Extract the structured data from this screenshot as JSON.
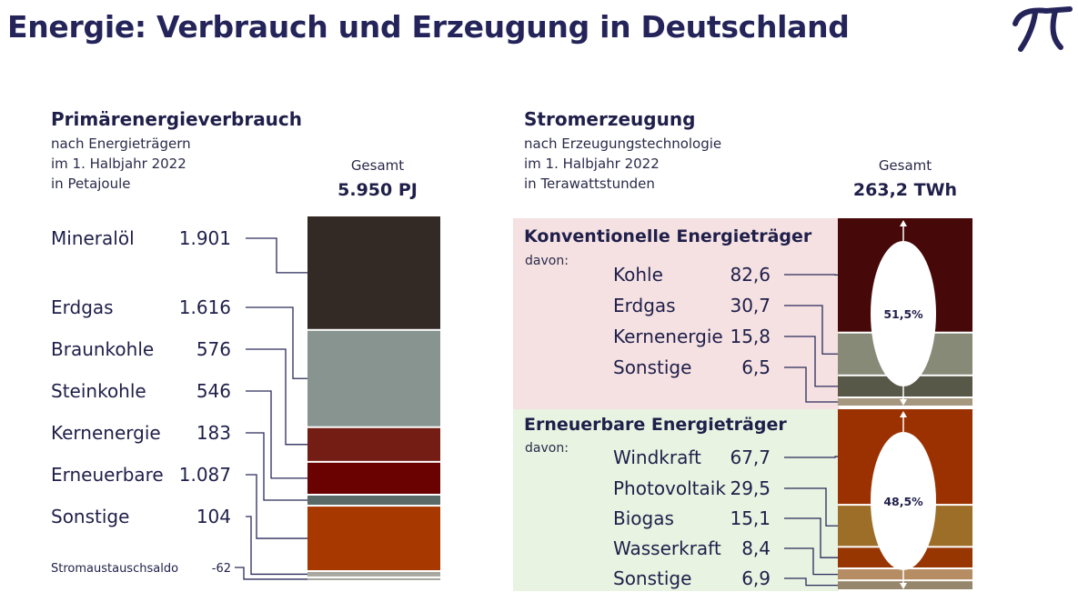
{
  "page": {
    "title": "Energie: Verbrauch und Erzeugung in Deutschland",
    "logo": "pi-logo-icon"
  },
  "left": {
    "title": "Primärenergieverbrauch",
    "subtitle": [
      "nach Energieträgern",
      "im 1. Halbjahr 2022",
      "in Petajoule"
    ],
    "total_label": "Gesamt",
    "total_value": "5.950 PJ"
  },
  "right": {
    "title": "Stromerzeugung",
    "subtitle": [
      "nach Erzeugungstechnologie",
      "im 1. Halbjahr 2022",
      "in Terawattstunden"
    ],
    "total_label": "Gesamt",
    "total_value": "263,2 TWh",
    "groups": [
      {
        "title": "Konventionelle Energieträger",
        "davon": "davon:",
        "share": "51,5%",
        "bg": "#f5e1e2"
      },
      {
        "title": "Erneuerbare Energieträger",
        "davon": "davon:",
        "share": "48,5%",
        "bg": "#e8f3e1"
      }
    ]
  },
  "chart_data": [
    {
      "type": "bar",
      "stacked": true,
      "unit": "PJ",
      "total": 5950,
      "categories": [
        "Mineralöl",
        "Erdgas",
        "Braunkohle",
        "Steinkohle",
        "Kernenergie",
        "Erneuerbare",
        "Sonstige",
        "Stromaustauschsaldo"
      ],
      "value_labels": [
        "1.901",
        "1.616",
        "576",
        "546",
        "183",
        "1.087",
        "104",
        "-62"
      ],
      "values": [
        1901,
        1616,
        576,
        546,
        183,
        1087,
        104,
        -62
      ],
      "colors": [
        "#332a26",
        "#879490",
        "#731d14",
        "#6b0202",
        "#5a6a66",
        "#a73800",
        "#a8a8a0",
        "#a8a8a0"
      ]
    },
    {
      "type": "bar",
      "stacked": true,
      "unit": "TWh",
      "total": 263.2,
      "categories": [
        "Kohle",
        "Erdgas",
        "Kernenergie",
        "Sonstige",
        "Windkraft",
        "Photovoltaik",
        "Biogas",
        "Wasserkraft",
        "Sonstige"
      ],
      "value_labels": [
        "82,6",
        "30,7",
        "15,8",
        "6,5",
        "67,7",
        "29,5",
        "15,1",
        "8,4",
        "6,9"
      ],
      "values": [
        82.6,
        30.7,
        15.8,
        6.5,
        67.7,
        29.5,
        15.1,
        8.4,
        6.9
      ],
      "group": [
        "konventionell",
        "konventionell",
        "konventionell",
        "konventionell",
        "erneuerbar",
        "erneuerbar",
        "erneuerbar",
        "erneuerbar",
        "erneuerbar"
      ],
      "colors": [
        "#460808",
        "#888a78",
        "#575848",
        "#a5987e",
        "#9b3100",
        "#9d6e27",
        "#973600",
        "#b68d63",
        "#95866c"
      ]
    }
  ]
}
